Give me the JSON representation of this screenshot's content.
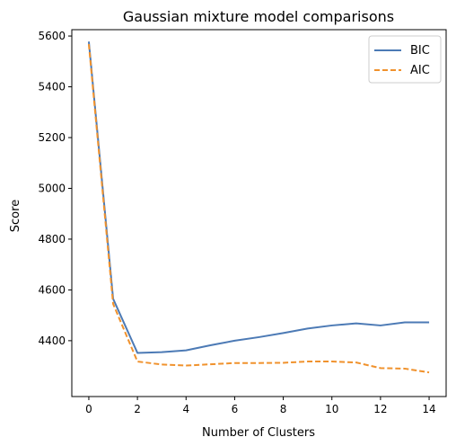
{
  "chart_data": {
    "type": "line",
    "title": "Gaussian mixture model comparisons",
    "xlabel": "Number of Clusters",
    "ylabel": "Score",
    "xlim": [
      -0.7,
      14.7
    ],
    "ylim": [
      4180,
      5625
    ],
    "xticks": [
      "0",
      "2",
      "4",
      "6",
      "8",
      "10",
      "12",
      "14"
    ],
    "yticks": [
      "4400",
      "4600",
      "4800",
      "5000",
      "5200",
      "5400",
      "5600"
    ],
    "grid": false,
    "legend_position": "top-right",
    "x": [
      0,
      1,
      2,
      3,
      4,
      5,
      6,
      7,
      8,
      9,
      10,
      11,
      12,
      13,
      14
    ],
    "series": [
      {
        "name": "BIC",
        "color": "#4c7ab5",
        "dash": "solid",
        "values": [
          5578,
          4565,
          4352,
          4355,
          4362,
          4382,
          4400,
          4414,
          4430,
          4448,
          4460,
          4468,
          4460,
          4472,
          4472
        ]
      },
      {
        "name": "AIC",
        "color": "#f0922d",
        "dash": "dashed",
        "values": [
          5568,
          4545,
          4318,
          4306,
          4302,
          4307,
          4312,
          4312,
          4313,
          4318,
          4318,
          4314,
          4292,
          4290,
          4275
        ]
      }
    ]
  }
}
